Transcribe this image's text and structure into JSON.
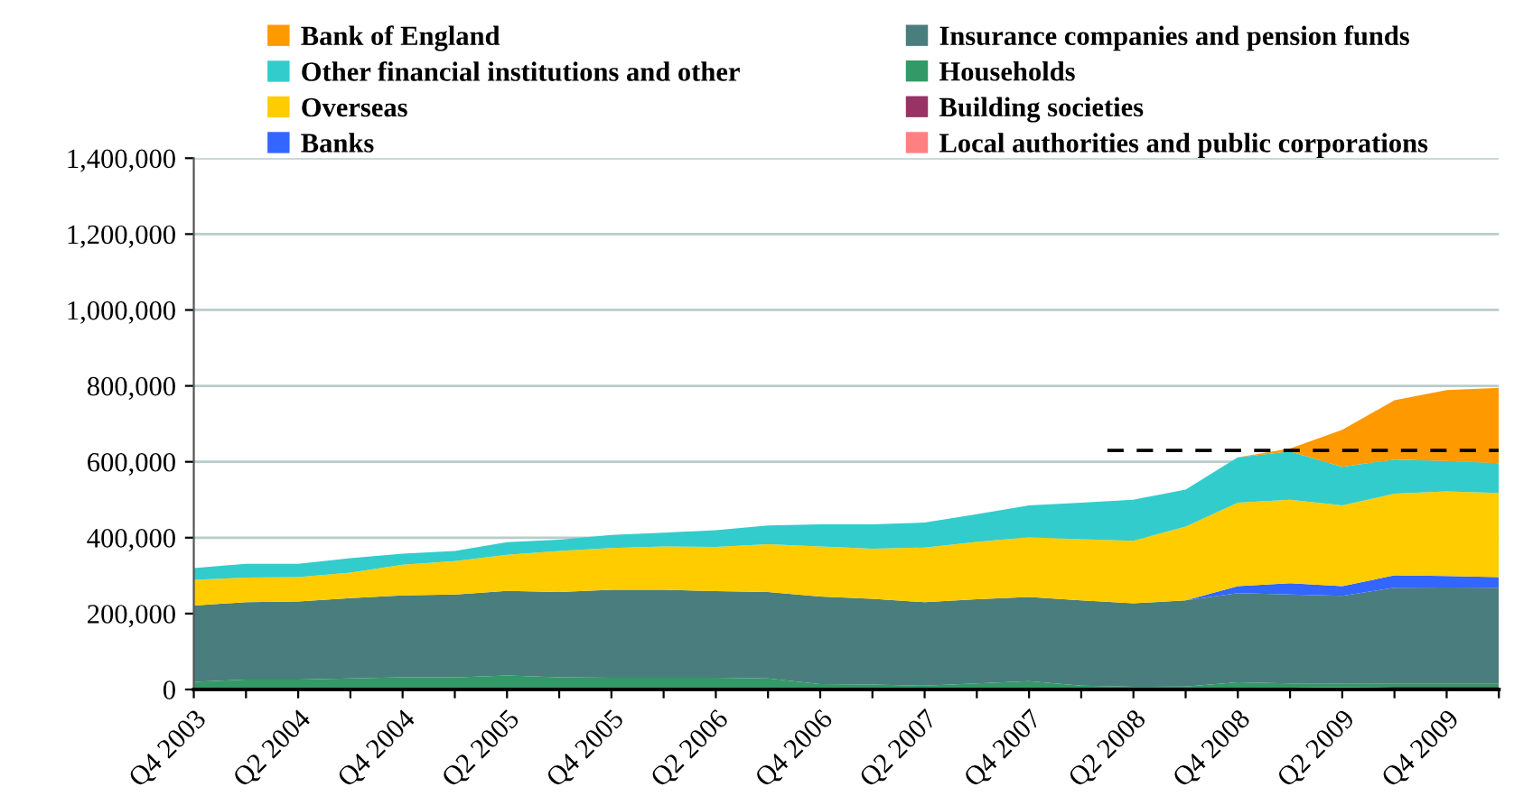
{
  "chart_data": {
    "type": "area",
    "stacked": true,
    "categories": [
      "Q4 2003",
      null,
      "Q2 2004",
      null,
      "Q4 2004",
      null,
      "Q2 2005",
      null,
      "Q4 2005",
      null,
      "Q2 2006",
      null,
      "Q4 2006",
      null,
      "Q2 2007",
      null,
      "Q4 2007",
      null,
      "Q2 2008",
      null,
      "Q4 2008",
      null,
      "Q2 2009",
      null,
      "Q4 2009",
      null
    ],
    "series": [
      {
        "name": "Local authorities and public corporations",
        "color": "#ff8080",
        "values": [
          null,
          null,
          null,
          null,
          null,
          null,
          null,
          null,
          null,
          null,
          null,
          null,
          null,
          null,
          null,
          null,
          null,
          null,
          null,
          null,
          null,
          null,
          null,
          null,
          null,
          null
        ]
      },
      {
        "name": "Building societies",
        "color": "#993366",
        "values": [
          0,
          0,
          0,
          0,
          0,
          0,
          0,
          0,
          0,
          0,
          0,
          0,
          0,
          0,
          0,
          0,
          0,
          0,
          4000,
          4000,
          5000,
          5000,
          6000,
          7000,
          7000,
          7000
        ]
      },
      {
        "name": "Households",
        "color": "#339966",
        "values": [
          20000,
          26000,
          26000,
          29000,
          32000,
          32000,
          37000,
          32000,
          31000,
          31000,
          31000,
          29000,
          14000,
          13000,
          10000,
          16000,
          22000,
          10000,
          3000,
          4000,
          14000,
          11000,
          10000,
          9000,
          9000,
          9000
        ]
      },
      {
        "name": "Insurance companies and pension funds",
        "color": "#4a7d7d",
        "values": [
          201000,
          204000,
          206000,
          212000,
          216000,
          218000,
          223000,
          225000,
          232000,
          232000,
          228000,
          228000,
          231000,
          226000,
          220000,
          222000,
          222000,
          225000,
          220000,
          227000,
          235000,
          234000,
          231000,
          252000,
          253000,
          252000
        ]
      },
      {
        "name": "Banks",
        "color": "#3366ff",
        "values": [
          0,
          0,
          0,
          0,
          0,
          0,
          0,
          0,
          0,
          0,
          0,
          0,
          0,
          0,
          0,
          0,
          0,
          0,
          0,
          0,
          18000,
          30000,
          25000,
          33000,
          30000,
          28000
        ]
      },
      {
        "name": "Overseas",
        "color": "#ffcc00",
        "values": [
          68000,
          65000,
          64000,
          67000,
          81000,
          88000,
          95000,
          108000,
          110000,
          114000,
          117000,
          126000,
          132000,
          132000,
          144000,
          151000,
          157000,
          161000,
          165000,
          194000,
          220000,
          220000,
          213000,
          215000,
          223000,
          222000
        ]
      },
      {
        "name": "Other financial institutions and other",
        "color": "#33cccc",
        "values": [
          31000,
          36000,
          35000,
          38000,
          29000,
          27000,
          33000,
          30000,
          34000,
          36000,
          44000,
          49000,
          58000,
          64000,
          66000,
          73000,
          84000,
          96000,
          108000,
          98000,
          120000,
          127000,
          102000,
          90000,
          80000,
          78000
        ]
      },
      {
        "name": "Bank of England",
        "color": "#ff9900",
        "values": [
          0,
          0,
          0,
          0,
          0,
          0,
          0,
          0,
          0,
          0,
          0,
          0,
          0,
          0,
          0,
          0,
          0,
          0,
          0,
          0,
          0,
          8000,
          97000,
          156000,
          187000,
          199000
        ]
      }
    ],
    "ylim": [
      0,
      1400000
    ],
    "yticks": [
      {
        "value": 0,
        "label": "0"
      },
      {
        "value": 200000,
        "label": "200,000"
      },
      {
        "value": 400000,
        "label": "400,000"
      },
      {
        "value": 600000,
        "label": "600,000"
      },
      {
        "value": 800000,
        "label": "800,000"
      },
      {
        "value": 1000000,
        "label": "1,000,000"
      },
      {
        "value": 1200000,
        "label": "1,200,000"
      },
      {
        "value": 1400000,
        "label": "1,400,000"
      }
    ],
    "ref_lines": [
      {
        "axis": "y",
        "value": 630000,
        "color": "#000000",
        "line_style": "dashed"
      }
    ],
    "grid": "y",
    "legend": "top"
  }
}
